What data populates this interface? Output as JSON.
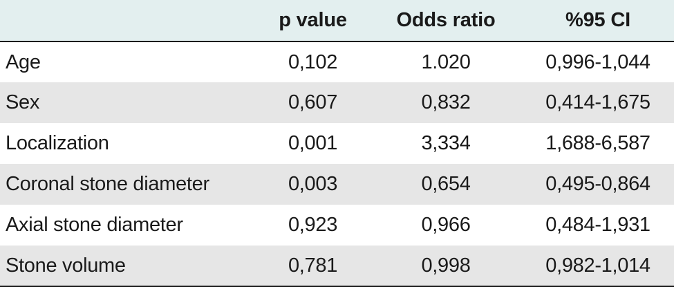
{
  "table": {
    "headers": [
      "",
      "p value",
      "Odds ratio",
      "%95 CI"
    ],
    "rows": [
      {
        "label": "Age",
        "p_value": "0,102",
        "odds_ratio": "1.020",
        "ci": "0,996-1,044"
      },
      {
        "label": "Sex",
        "p_value": "0,607",
        "odds_ratio": "0,832",
        "ci": "0,414-1,675"
      },
      {
        "label": "Localization",
        "p_value": "0,001",
        "odds_ratio": "3,334",
        "ci": "1,688-6,587"
      },
      {
        "label": "Coronal stone diameter",
        "p_value": "0,003",
        "odds_ratio": "0,654",
        "ci": "0,495-0,864"
      },
      {
        "label": "Axial stone diameter",
        "p_value": "0,923",
        "odds_ratio": "0,966",
        "ci": "0,484-1,931"
      },
      {
        "label": "Stone volume",
        "p_value": "0,781",
        "odds_ratio": "0,998",
        "ci": "0,982-1,014"
      }
    ]
  },
  "colors": {
    "header_bg": "#e3efef",
    "stripe_bg": "#e6e6e6",
    "rule": "#1a1a1a"
  }
}
